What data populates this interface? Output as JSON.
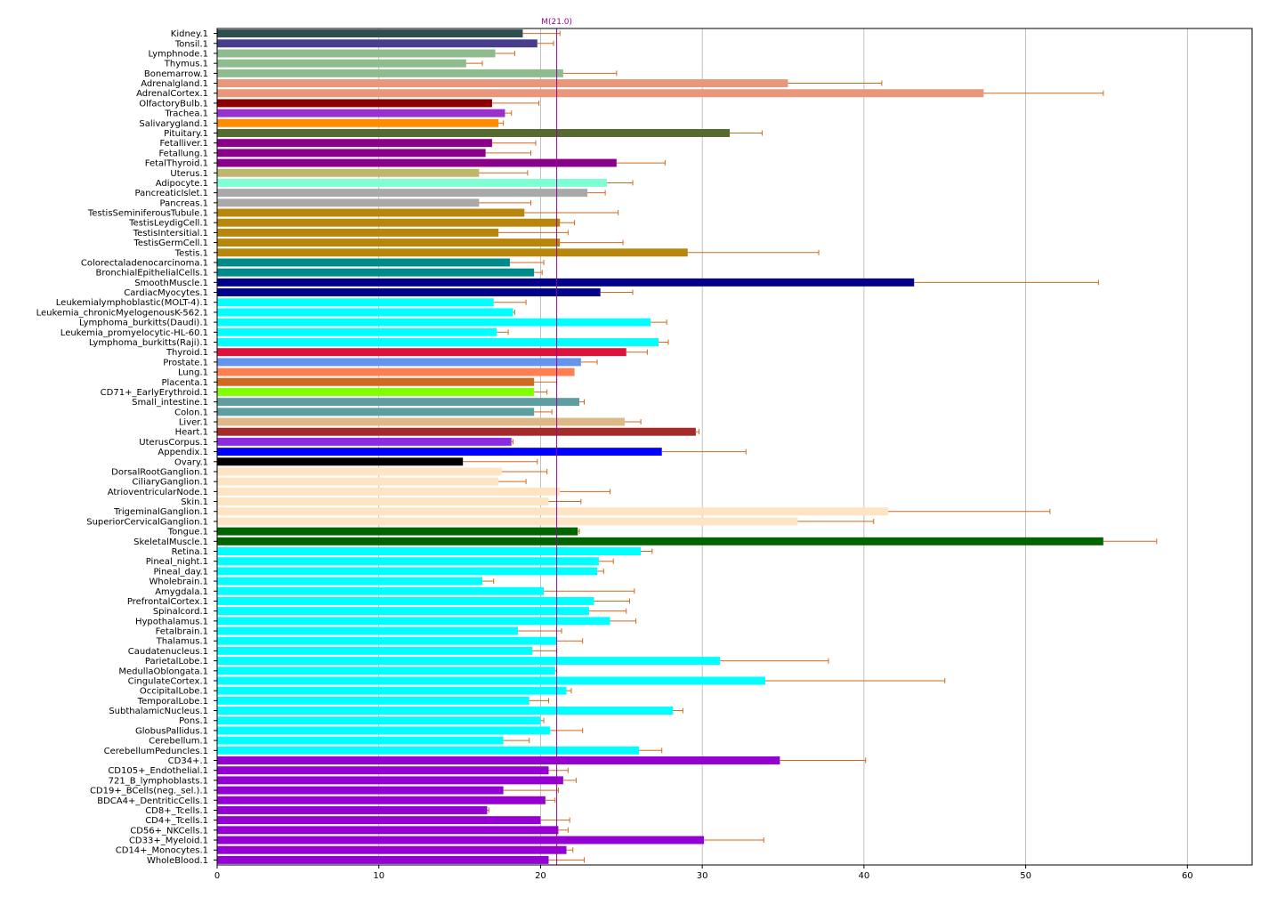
{
  "chart_data": {
    "type": "bar",
    "orientation": "horizontal",
    "title": "",
    "xlabel": "",
    "ylabel": "",
    "xlim": [
      0,
      64
    ],
    "x_ticks": [
      0,
      10,
      20,
      30,
      40,
      50,
      60
    ],
    "grid": "vertical",
    "reference_line": {
      "value": 21.0,
      "label": "M(21.0)",
      "color": "#990099"
    },
    "error_color": "#d2691e",
    "categories": [
      "Kidney.1",
      "Tonsil.1",
      "Lymphnode.1",
      "Thymus.1",
      "Bonemarrow.1",
      "Adrenalgland.1",
      "AdrenalCortex.1",
      "OlfactoryBulb.1",
      "Trachea.1",
      "Salivarygland.1",
      "Pituitary.1",
      "Fetalliver.1",
      "Fetallung.1",
      "FetalThyroid.1",
      "Uterus.1",
      "Adipocyte.1",
      "PancreaticIslet.1",
      "Pancreas.1",
      "TestisSeminiferousTubule.1",
      "TestisLeydigCell.1",
      "TestisIntersitial.1",
      "TestisGermCell.1",
      "Testis.1",
      "Colorectaladenocarcinoma.1",
      "BronchialEpithelialCells.1",
      "SmoothMuscle.1",
      "CardiacMyocytes.1",
      "Leukemialymphoblastic(MOLT-4).1",
      "Leukemia_chronicMyelogenousK-562.1",
      "Lymphoma_burkitts(Daudi).1",
      "Leukemia_promyelocytic-HL-60.1",
      "Lymphoma_burkitts(Raji).1",
      "Thyroid.1",
      "Prostate.1",
      "Lung.1",
      "Placenta.1",
      "CD71+_EarlyErythroid.1",
      "Small_intestine.1",
      "Colon.1",
      "Liver.1",
      "Heart.1",
      "UterusCorpus.1",
      "Appendix.1",
      "Ovary.1",
      "DorsalRootGanglion.1",
      "CiliaryGanglion.1",
      "AtrioventricularNode.1",
      "Skin.1",
      "TrigeminalGanglion.1",
      "SuperiorCervicalGanglion.1",
      "Tongue.1",
      "SkeletalMuscle.1",
      "Retina.1",
      "Pineal_night.1",
      "Pineal_day.1",
      "Wholebrain.1",
      "Amygdala.1",
      "PrefrontalCortex.1",
      "Spinalcord.1",
      "Hypothalamus.1",
      "Fetalbrain.1",
      "Thalamus.1",
      "Caudatenucleus.1",
      "ParietalLobe.1",
      "MedullaOblongata.1",
      "CingulateCortex.1",
      "OccipitalLobe.1",
      "TemporalLobe.1",
      "SubthalamicNucleus.1",
      "Pons.1",
      "GlobusPallidus.1",
      "Cerebellum.1",
      "CerebellumPeduncles.1",
      "CD34+.1",
      "CD105+_Endothelial.1",
      "721_B_lymphoblasts.1",
      "CD19+_BCells(neg._sel.).1",
      "BDCA4+_DentriticCells.1",
      "CD8+_Tcells.1",
      "CD4+_Tcells.1",
      "CD56+_NKCells.1",
      "CD33+_Myeloid.1",
      "CD14+_Monocytes.1",
      "WholeBlood.1"
    ],
    "values": [
      18.9,
      19.8,
      17.2,
      15.4,
      21.4,
      35.3,
      47.4,
      17.0,
      17.8,
      17.4,
      31.7,
      17.0,
      16.6,
      24.7,
      16.2,
      24.1,
      22.9,
      16.2,
      19.0,
      21.2,
      17.4,
      21.2,
      29.1,
      18.1,
      19.6,
      43.1,
      23.7,
      17.1,
      18.3,
      26.8,
      17.3,
      27.3,
      25.3,
      22.5,
      22.1,
      19.6,
      19.6,
      22.4,
      19.6,
      25.2,
      29.6,
      18.2,
      27.5,
      15.2,
      17.6,
      17.4,
      21.2,
      20.5,
      41.5,
      35.9,
      22.3,
      54.8,
      26.2,
      23.6,
      23.5,
      16.4,
      20.2,
      23.3,
      23.0,
      24.3,
      18.6,
      21.0,
      19.5,
      31.1,
      20.9,
      33.9,
      21.6,
      19.3,
      28.2,
      20.0,
      20.6,
      17.7,
      26.1,
      34.8,
      20.5,
      21.4,
      17.7,
      20.3,
      16.7,
      20.0,
      21.1,
      30.1,
      21.6,
      20.5
    ],
    "errors": [
      2.3,
      1.0,
      1.2,
      1.0,
      3.3,
      5.8,
      7.4,
      2.9,
      0.4,
      0.3,
      2.0,
      2.7,
      2.8,
      3.0,
      3.0,
      1.6,
      1.1,
      3.2,
      5.8,
      0.9,
      4.3,
      3.9,
      8.1,
      2.1,
      0.5,
      11.4,
      2.0,
      2.0,
      0.1,
      1.0,
      0.7,
      0.6,
      1.3,
      1.0,
      0.0,
      1.4,
      0.8,
      0.3,
      1.1,
      1.0,
      0.2,
      0.1,
      5.2,
      4.6,
      2.8,
      1.7,
      3.1,
      2.0,
      10.0,
      4.7,
      0.1,
      3.3,
      0.7,
      0.9,
      0.4,
      0.7,
      5.6,
      2.2,
      2.3,
      1.6,
      2.7,
      1.6,
      1.5,
      6.7,
      0.1,
      11.1,
      0.3,
      1.2,
      0.6,
      0.2,
      2.0,
      1.6,
      1.4,
      5.3,
      1.2,
      0.8,
      3.4,
      0.6,
      0.1,
      1.8,
      0.6,
      3.7,
      0.4,
      2.2
    ],
    "colors": [
      "#2f4f4f",
      "#483d8b",
      "#8fbc8f",
      "#8fbc8f",
      "#8fbc8f",
      "#e9967a",
      "#e9967a",
      "#8b0000",
      "#9932cc",
      "#ff8c00",
      "#556b2f",
      "#8b008b",
      "#8b008b",
      "#8b008b",
      "#bdb76b",
      "#7fffd4",
      "#a9a9a9",
      "#a9a9a9",
      "#b8860b",
      "#b8860b",
      "#b8860b",
      "#b8860b",
      "#b8860b",
      "#008b8b",
      "#008b8b",
      "#00008b",
      "#00008b",
      "#00ffff",
      "#00ffff",
      "#00ffff",
      "#00ffff",
      "#00ffff",
      "#dc143c",
      "#6495ed",
      "#ff7f50",
      "#d2691e",
      "#7fff00",
      "#5f9ea0",
      "#5f9ea0",
      "#deb887",
      "#a52a2a",
      "#8a2be2",
      "#0000ff",
      "#000000",
      "#ffe4c4",
      "#ffe4c4",
      "#ffe4c4",
      "#ffe4c4",
      "#ffe4c4",
      "#ffe4c4",
      "#006400",
      "#006400",
      "#00ffff",
      "#00ffff",
      "#00ffff",
      "#00ffff",
      "#00ffff",
      "#00ffff",
      "#00ffff",
      "#00ffff",
      "#00ffff",
      "#00ffff",
      "#00ffff",
      "#00ffff",
      "#00ffff",
      "#00ffff",
      "#00ffff",
      "#00ffff",
      "#00ffff",
      "#00ffff",
      "#00ffff",
      "#00ffff",
      "#00ffff",
      "#9400d3",
      "#9400d3",
      "#9400d3",
      "#9400d3",
      "#9400d3",
      "#9400d3",
      "#9400d3",
      "#9400d3",
      "#9400d3",
      "#9400d3",
      "#9400d3"
    ]
  }
}
